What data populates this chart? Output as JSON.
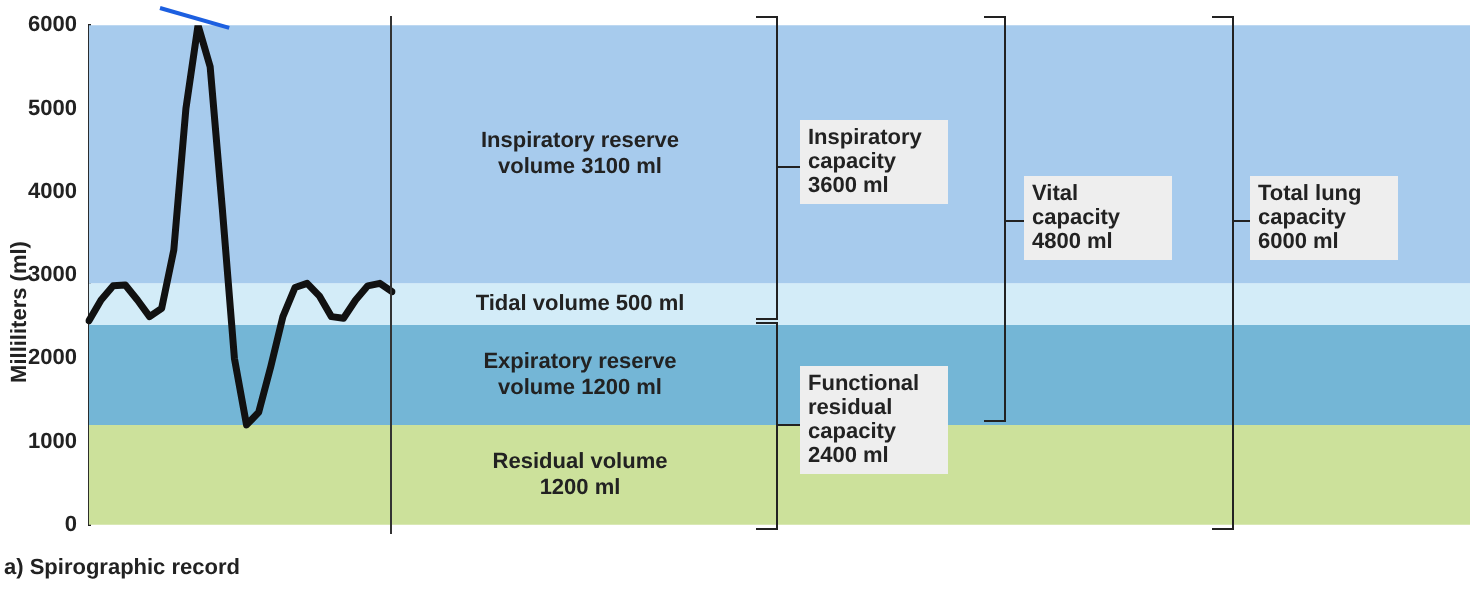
{
  "chart_data": {
    "type": "line",
    "title": "a) Spirographic record",
    "ylabel": "Milliliters (ml)",
    "categories": [
      null,
      null,
      null,
      null,
      null,
      null,
      null,
      null,
      null,
      null,
      null,
      null,
      null,
      null,
      null,
      null,
      null,
      null,
      null,
      null,
      null,
      null,
      null,
      null,
      null,
      null
    ],
    "series": [
      {
        "color": "#111111",
        "values": [
          2450,
          2700,
          2870,
          2880,
          2700,
          2500,
          2600,
          3300,
          5000,
          6000,
          5500,
          3800,
          2000,
          1200,
          1350,
          1900,
          2500,
          2850,
          2900,
          2750,
          2500,
          2480,
          2700,
          2870,
          2900,
          2800
        ]
      }
    ],
    "ylim": [
      0,
      6000
    ],
    "yticks": [
      0,
      1000,
      2000,
      3000,
      4000,
      5000,
      6000
    ],
    "tick_labels": "y",
    "grid": false,
    "bands": [
      {
        "axis": "y",
        "from": 0,
        "to": 1200,
        "label": "Residual volume 1200 ml",
        "color": "#cce19b"
      },
      {
        "axis": "y",
        "from": 1200,
        "to": 2400,
        "label": "Expiratory reserve volume 1200 ml",
        "color": "#74b6d6"
      },
      {
        "axis": "y",
        "from": 2400,
        "to": 2900,
        "label": "Tidal volume 500 ml",
        "color": "#d3ecf8"
      },
      {
        "axis": "y",
        "from": 2900,
        "to": 6000,
        "label": "Inspiratory reserve volume 3100 ml",
        "color": "#a7cbed"
      }
    ],
    "annotations": [
      "Inspiratory capacity 3600 ml",
      "Functional residual capacity 2400 ml",
      "Vital capacity 4800 ml",
      "Total lung capacity 6000 ml"
    ]
  }
}
